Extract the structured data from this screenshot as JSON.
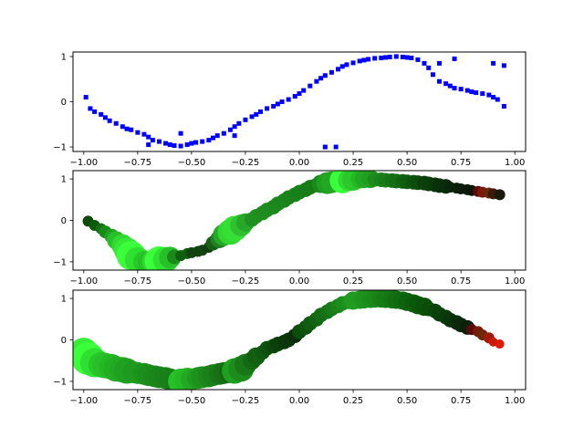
{
  "chart_data": [
    {
      "type": "scatter",
      "title": "",
      "xlabel": "",
      "ylabel": "",
      "xlim": [
        -1.05,
        1.05
      ],
      "ylim": [
        -1.1,
        1.1
      ],
      "xticks": [
        -1.0,
        -0.75,
        -0.5,
        -0.25,
        0.0,
        0.25,
        0.5,
        0.75,
        1.0
      ],
      "xtick_labels": [
        "−1.00",
        "−0.75",
        "−0.50",
        "−0.25",
        "0.00",
        "0.25",
        "0.50",
        "0.75",
        "1.00"
      ],
      "yticks": [
        -1,
        0,
        1
      ],
      "ytick_labels": [
        "−1",
        "0",
        "1"
      ],
      "marker": "square",
      "color": "#0000ff",
      "series": [
        {
          "name": "samples",
          "x": [
            -0.99,
            -0.97,
            -0.95,
            -0.92,
            -0.9,
            -0.88,
            -0.85,
            -0.82,
            -0.8,
            -0.78,
            -0.75,
            -0.72,
            -0.7,
            -0.68,
            -0.65,
            -0.62,
            -0.6,
            -0.58,
            -0.55,
            -0.52,
            -0.5,
            -0.48,
            -0.45,
            -0.42,
            -0.4,
            -0.38,
            -0.35,
            -0.32,
            -0.3,
            -0.28,
            -0.25,
            -0.22,
            -0.2,
            -0.18,
            -0.15,
            -0.12,
            -0.1,
            -0.08,
            -0.05,
            -0.02,
            0.0,
            0.02,
            0.05,
            0.08,
            0.1,
            0.12,
            0.15,
            0.18,
            0.2,
            0.22,
            0.25,
            0.28,
            0.3,
            0.32,
            0.35,
            0.38,
            0.4,
            0.42,
            0.45,
            0.48,
            0.5,
            0.52,
            0.55,
            0.58,
            0.6,
            0.62,
            0.65,
            0.68,
            0.7,
            0.72,
            0.75,
            0.78,
            0.8,
            0.82,
            0.85,
            0.88,
            0.9,
            0.92,
            0.95,
            -0.7,
            -0.55,
            -0.3,
            0.12,
            0.17,
            0.65,
            0.72,
            0.9,
            0.95
          ],
          "y": [
            0.1,
            -0.15,
            -0.22,
            -0.28,
            -0.35,
            -0.42,
            -0.48,
            -0.55,
            -0.6,
            -0.62,
            -0.68,
            -0.72,
            -0.78,
            -0.85,
            -0.88,
            -0.92,
            -0.95,
            -0.97,
            -0.98,
            -0.95,
            -0.92,
            -0.9,
            -0.88,
            -0.85,
            -0.8,
            -0.75,
            -0.7,
            -0.62,
            -0.55,
            -0.48,
            -0.4,
            -0.33,
            -0.28,
            -0.22,
            -0.15,
            -0.1,
            -0.05,
            0.0,
            0.05,
            0.12,
            0.18,
            0.25,
            0.35,
            0.45,
            0.52,
            0.58,
            0.65,
            0.72,
            0.78,
            0.82,
            0.86,
            0.9,
            0.92,
            0.94,
            0.96,
            0.97,
            0.98,
            0.99,
            1.0,
            0.99,
            0.98,
            0.97,
            0.93,
            0.85,
            0.75,
            0.6,
            0.45,
            0.4,
            0.35,
            0.3,
            0.28,
            0.25,
            0.22,
            0.2,
            0.18,
            0.15,
            0.1,
            0.05,
            -0.1,
            -0.95,
            -0.7,
            -0.75,
            -1.0,
            -1.0,
            0.85,
            0.95,
            0.85,
            0.8
          ]
        }
      ]
    },
    {
      "type": "scatter",
      "title": "",
      "xlabel": "",
      "ylabel": "",
      "xlim": [
        -1.05,
        1.05
      ],
      "ylim": [
        -1.2,
        1.2
      ],
      "xticks": [
        -1.0,
        -0.75,
        -0.5,
        -0.25,
        0.0,
        0.25,
        0.5,
        0.75,
        1.0
      ],
      "xtick_labels": [
        "−1.00",
        "−0.75",
        "−0.50",
        "−0.25",
        "0.00",
        "0.25",
        "0.50",
        "0.75",
        "1.00"
      ],
      "yticks": [
        -1,
        0,
        1
      ],
      "ytick_labels": [
        "−1",
        "0",
        "1"
      ],
      "marker": "circle",
      "series": [
        {
          "name": "samples",
          "x": [
            -0.98,
            -0.95,
            -0.92,
            -0.9,
            -0.87,
            -0.85,
            -0.82,
            -0.8,
            -0.78,
            -0.75,
            -0.72,
            -0.7,
            -0.67,
            -0.65,
            -0.62,
            -0.6,
            -0.58,
            -0.55,
            -0.52,
            -0.5,
            -0.47,
            -0.45,
            -0.42,
            -0.4,
            -0.37,
            -0.35,
            -0.32,
            -0.3,
            -0.27,
            -0.25,
            -0.22,
            -0.2,
            -0.17,
            -0.15,
            -0.12,
            -0.1,
            -0.07,
            -0.05,
            -0.02,
            0.0,
            0.03,
            0.05,
            0.08,
            0.1,
            0.13,
            0.15,
            0.18,
            0.2,
            0.23,
            0.25,
            0.28,
            0.3,
            0.33,
            0.35,
            0.38,
            0.4,
            0.43,
            0.45,
            0.48,
            0.5,
            0.53,
            0.55,
            0.58,
            0.6,
            0.63,
            0.65,
            0.68,
            0.7,
            0.73,
            0.75,
            0.78,
            0.8,
            0.83,
            0.85,
            0.88,
            0.9,
            0.93
          ],
          "y": [
            -0.02,
            -0.12,
            -0.2,
            -0.28,
            -0.38,
            -0.48,
            -0.6,
            -0.72,
            -0.85,
            -0.95,
            -1.0,
            -1.02,
            -1.0,
            -0.98,
            -0.95,
            -0.9,
            -0.88,
            -0.85,
            -0.8,
            -0.78,
            -0.75,
            -0.72,
            -0.65,
            -0.55,
            -0.45,
            -0.35,
            -0.28,
            -0.2,
            -0.12,
            -0.05,
            0.02,
            0.1,
            0.18,
            0.25,
            0.32,
            0.4,
            0.48,
            0.55,
            0.62,
            0.68,
            0.74,
            0.8,
            0.85,
            0.88,
            0.9,
            0.92,
            0.94,
            0.96,
            0.97,
            0.98,
            0.99,
            1.0,
            1.0,
            0.99,
            0.98,
            0.97,
            0.96,
            0.95,
            0.94,
            0.93,
            0.92,
            0.91,
            0.9,
            0.88,
            0.86,
            0.84,
            0.82,
            0.8,
            0.78,
            0.76,
            0.74,
            0.72,
            0.7,
            0.68,
            0.66,
            0.64,
            0.62
          ],
          "size": [
            6,
            6,
            6,
            7,
            8,
            10,
            12,
            14,
            16,
            14,
            12,
            12,
            14,
            16,
            14,
            12,
            8,
            6,
            6,
            6,
            6,
            6,
            6,
            8,
            10,
            12,
            14,
            14,
            12,
            10,
            8,
            8,
            8,
            8,
            8,
            8,
            8,
            8,
            8,
            8,
            8,
            8,
            8,
            10,
            12,
            12,
            10,
            14,
            12,
            12,
            10,
            10,
            10,
            8,
            8,
            8,
            8,
            8,
            8,
            8,
            8,
            8,
            8,
            8,
            8,
            8,
            8,
            6,
            6,
            6,
            6,
            6,
            6,
            6,
            6,
            6,
            6
          ],
          "color": [
            "#0a4a0a",
            "#0d5a0d",
            "#127012",
            "#188a18",
            "#20a020",
            "#28c028",
            "#30d830",
            "#35e835",
            "#3aff3a",
            "#30e030",
            "#28c828",
            "#25c025",
            "#30d830",
            "#3aff3a",
            "#30e030",
            "#28c028",
            "#1a8a1a",
            "#0f5e0f",
            "#0f5e0f",
            "#114411",
            "#114411",
            "#114411",
            "#0f3e0f",
            "#156015",
            "#208020",
            "#28a828",
            "#30d830",
            "#35e035",
            "#30c030",
            "#28a828",
            "#209020",
            "#209020",
            "#1f8e1f",
            "#1e8c1e",
            "#1d8a1d",
            "#1c881c",
            "#1b861b",
            "#1a841a",
            "#198219",
            "#188018",
            "#177e17",
            "#167c16",
            "#157a15",
            "#1a8a1a",
            "#20a020",
            "#22a822",
            "#1f9a1f",
            "#3aff3a",
            "#30d830",
            "#2ac82a",
            "#25b825",
            "#22a822",
            "#20a020",
            "#1c8c1c",
            "#1a841a",
            "#187c18",
            "#167416",
            "#146c14",
            "#126412",
            "#105c10",
            "#0e540e",
            "#0c4c0c",
            "#0a440a",
            "#0a3e0a",
            "#0a380a",
            "#0a320a",
            "#0a2c0a",
            "#0a260a",
            "#0a220a",
            "#0a1e0a",
            "#0a1a0a",
            "#0a160a",
            "#5a0a0a",
            "#7a1a0a",
            "#6a2a0a",
            "#3a1a0a",
            "#1a1a0a"
          ]
        }
      ]
    },
    {
      "type": "scatter",
      "title": "",
      "xlabel": "",
      "ylabel": "",
      "xlim": [
        -1.05,
        1.05
      ],
      "ylim": [
        -1.2,
        1.2
      ],
      "xticks": [
        -1.0,
        -0.75,
        -0.5,
        -0.25,
        0.0,
        0.25,
        0.5,
        0.75,
        1.0
      ],
      "xtick_labels": [
        "−1.00",
        "−0.75",
        "−0.50",
        "−0.25",
        "0.00",
        "0.25",
        "0.50",
        "0.75",
        "1.00"
      ],
      "yticks": [
        -1,
        0,
        1
      ],
      "ytick_labels": [
        "−1",
        "0",
        "1"
      ],
      "marker": "circle",
      "series": [
        {
          "name": "samples",
          "x": [
            -1.0,
            -0.98,
            -0.95,
            -0.92,
            -0.9,
            -0.87,
            -0.85,
            -0.82,
            -0.8,
            -0.77,
            -0.75,
            -0.72,
            -0.7,
            -0.67,
            -0.65,
            -0.62,
            -0.6,
            -0.57,
            -0.55,
            -0.52,
            -0.5,
            -0.47,
            -0.45,
            -0.42,
            -0.4,
            -0.37,
            -0.35,
            -0.32,
            -0.3,
            -0.27,
            -0.25,
            -0.22,
            -0.2,
            -0.17,
            -0.15,
            -0.12,
            -0.1,
            -0.07,
            -0.05,
            -0.02,
            0.0,
            0.03,
            0.05,
            0.08,
            0.1,
            0.13,
            0.15,
            0.18,
            0.2,
            0.23,
            0.25,
            0.28,
            0.3,
            0.33,
            0.35,
            0.38,
            0.4,
            0.43,
            0.45,
            0.48,
            0.5,
            0.53,
            0.55,
            0.58,
            0.6,
            0.63,
            0.65,
            0.68,
            0.7,
            0.73,
            0.75,
            0.78,
            0.8,
            0.83,
            0.85,
            0.88,
            0.9,
            0.93
          ],
          "y": [
            -0.3,
            -0.45,
            -0.55,
            -0.6,
            -0.62,
            -0.65,
            -0.7,
            -0.72,
            -0.75,
            -0.78,
            -0.8,
            -0.82,
            -0.85,
            -0.88,
            -0.9,
            -0.92,
            -0.95,
            -0.98,
            -1.0,
            -0.98,
            -0.95,
            -0.92,
            -0.9,
            -0.88,
            -0.85,
            -0.82,
            -0.8,
            -0.78,
            -0.75,
            -0.7,
            -0.6,
            -0.5,
            -0.4,
            -0.3,
            -0.2,
            -0.15,
            -0.1,
            -0.05,
            0.0,
            0.1,
            0.2,
            0.3,
            0.4,
            0.5,
            0.6,
            0.68,
            0.75,
            0.82,
            0.88,
            0.92,
            0.95,
            0.97,
            0.98,
            0.99,
            1.0,
            1.0,
            0.99,
            0.98,
            0.97,
            0.95,
            0.92,
            0.88,
            0.84,
            0.8,
            0.75,
            0.7,
            0.62,
            0.55,
            0.48,
            0.42,
            0.36,
            0.3,
            0.25,
            0.2,
            0.12,
            0.05,
            -0.05,
            -0.1
          ],
          "size": [
            16,
            18,
            16,
            14,
            14,
            14,
            14,
            14,
            14,
            12,
            12,
            12,
            12,
            12,
            12,
            12,
            12,
            12,
            14,
            14,
            12,
            12,
            12,
            12,
            12,
            12,
            12,
            12,
            14,
            14,
            12,
            10,
            10,
            8,
            8,
            8,
            8,
            8,
            8,
            8,
            8,
            8,
            8,
            8,
            8,
            8,
            8,
            8,
            8,
            8,
            10,
            10,
            10,
            10,
            10,
            10,
            10,
            10,
            10,
            10,
            10,
            10,
            10,
            10,
            8,
            8,
            8,
            8,
            8,
            8,
            8,
            8,
            6,
            6,
            6,
            6,
            5,
            5
          ],
          "color": [
            "#35f035",
            "#3aff3a",
            "#30e030",
            "#28c828",
            "#28c028",
            "#25b825",
            "#22b022",
            "#22a822",
            "#20a020",
            "#1f9a1f",
            "#1e9a1e",
            "#1c941c",
            "#1b8e1b",
            "#1a8a1a",
            "#1a861a",
            "#198219",
            "#188018",
            "#177c17",
            "#28c028",
            "#25b825",
            "#22a822",
            "#209a20",
            "#1e901e",
            "#1c881c",
            "#1a801a",
            "#187818",
            "#167016",
            "#146814",
            "#20a020",
            "#1c8c1c",
            "#187818",
            "#146814",
            "#126012",
            "#105810",
            "#0e500e",
            "#0c480c",
            "#0a400a",
            "#0a3a0a",
            "#0a340a",
            "#0a2e0a",
            "#0c4c0c",
            "#0e540e",
            "#105c10",
            "#126412",
            "#146c14",
            "#167416",
            "#187c18",
            "#1a841a",
            "#1c8c1c",
            "#1e941e",
            "#209c20",
            "#209a20",
            "#1e941e",
            "#1c8e1c",
            "#1a881a",
            "#188218",
            "#167c16",
            "#147614",
            "#127012",
            "#106a10",
            "#0e640e",
            "#0c5e0c",
            "#0a580a",
            "#0a520a",
            "#0a4c0a",
            "#0a460a",
            "#0a400a",
            "#0a3a0a",
            "#0a340a",
            "#0a2e0a",
            "#0a280a",
            "#0a220a",
            "#5a0a0a",
            "#7a1a0a",
            "#6a2a0a",
            "#a01a0a",
            "#cc1a0a",
            "#e01a0a"
          ]
        }
      ]
    }
  ]
}
